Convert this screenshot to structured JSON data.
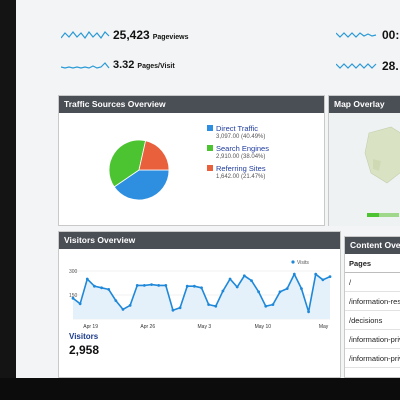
{
  "metrics": [
    {
      "value": "25,423",
      "label": "Pageviews"
    },
    {
      "value": "3.32",
      "label": "Pages/Visit"
    },
    {
      "value": "00:"
    },
    {
      "value": "28."
    }
  ],
  "traffic": {
    "title": "Traffic Sources Overview",
    "sources": [
      {
        "name": "Direct Traffic",
        "detail": "3,097.00 (40.49%)",
        "color": "#2e8fe0",
        "share": 40.49
      },
      {
        "name": "Search Engines",
        "detail": "2,910.00 (38.04%)",
        "color": "#4cc431",
        "share": 38.04
      },
      {
        "name": "Referring Sites",
        "detail": "1,642.00 (21.47%)",
        "color": "#e8603c",
        "share": 21.47
      }
    ]
  },
  "map": {
    "title": "Map Overlay"
  },
  "visitors": {
    "title": "Visitors Overview",
    "legend": "Visits",
    "label": "Visitors",
    "value": "2,958"
  },
  "content": {
    "title": "Content Overview",
    "header": "Pages",
    "rows": [
      "/",
      "/information-reso",
      "/decisions",
      "/information-priva",
      "/information-priva"
    ]
  },
  "chart_data": {
    "type": "line",
    "series": [
      {
        "name": "Visits",
        "values": [
          130,
          95,
          250,
          205,
          195,
          185,
          115,
          60,
          85,
          210,
          210,
          215,
          210,
          210,
          55,
          70,
          205,
          205,
          195,
          90,
          80,
          175,
          250,
          200,
          270,
          240,
          170,
          80,
          90,
          170,
          190,
          280,
          190,
          45,
          280,
          245,
          265
        ]
      }
    ],
    "x_tick_labels": [
      "Apr 19",
      "Apr 26",
      "May 3",
      "May 10",
      "May"
    ],
    "y_tick_labels": [
      "300",
      "150"
    ],
    "ylim": [
      0,
      300
    ],
    "legend_position": "top-right",
    "grid": true
  },
  "colors": {
    "panel_header": "#4a4e55",
    "line": "#1f88d9",
    "spark": "#2a9ad6",
    "map_land": "#d9e3c4"
  }
}
